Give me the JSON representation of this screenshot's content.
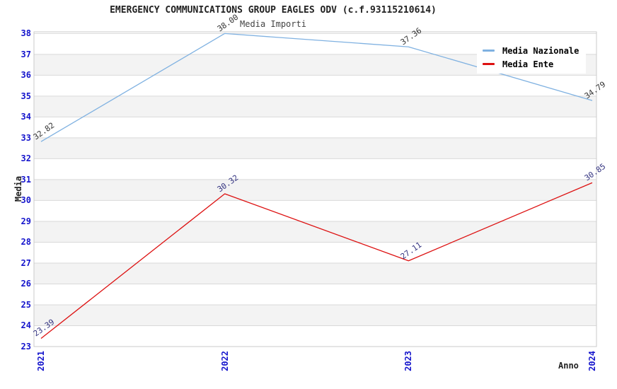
{
  "header": {
    "title": "EMERGENCY COMMUNICATIONS GROUP EAGLES ODV (c.f.93115210614)",
    "subtitle": "Media Importi"
  },
  "chart_data": {
    "type": "line",
    "title": "EMERGENCY COMMUNICATIONS GROUP EAGLES ODV (c.f.93115210614)",
    "subtitle": "Media Importi",
    "xlabel": "Anno",
    "ylabel": "Media",
    "categories": [
      "2021",
      "2022",
      "2023",
      "2024"
    ],
    "series": [
      {
        "name": "Media Nazionale",
        "color": "#7fb1e1",
        "label_color": "#333333",
        "values": [
          32.82,
          38.0,
          37.36,
          34.79
        ],
        "point_labels": [
          "32.82",
          "38.00",
          "37.36",
          "34.79"
        ]
      },
      {
        "name": "Media Ente",
        "color": "#dd1111",
        "label_color": "#333380",
        "values": [
          23.39,
          30.32,
          27.11,
          30.85
        ],
        "point_labels": [
          "23.39",
          "30.32",
          "27.11",
          "30.85"
        ]
      }
    ],
    "ylim": [
      23,
      38.08
    ],
    "yticks": [
      23,
      24,
      25,
      26,
      27,
      28,
      29,
      30,
      31,
      32,
      33,
      34,
      35,
      36,
      37,
      38
    ],
    "grid": "horizontal",
    "band_fill": "alternating",
    "legend_position": "top-right",
    "colors": {
      "tick_label": "#1414cc",
      "band_gray": "#f3f3f3",
      "gridline": "#d9d9d9",
      "plot_border": "#cbcbcb",
      "background": "#ffffff"
    }
  }
}
